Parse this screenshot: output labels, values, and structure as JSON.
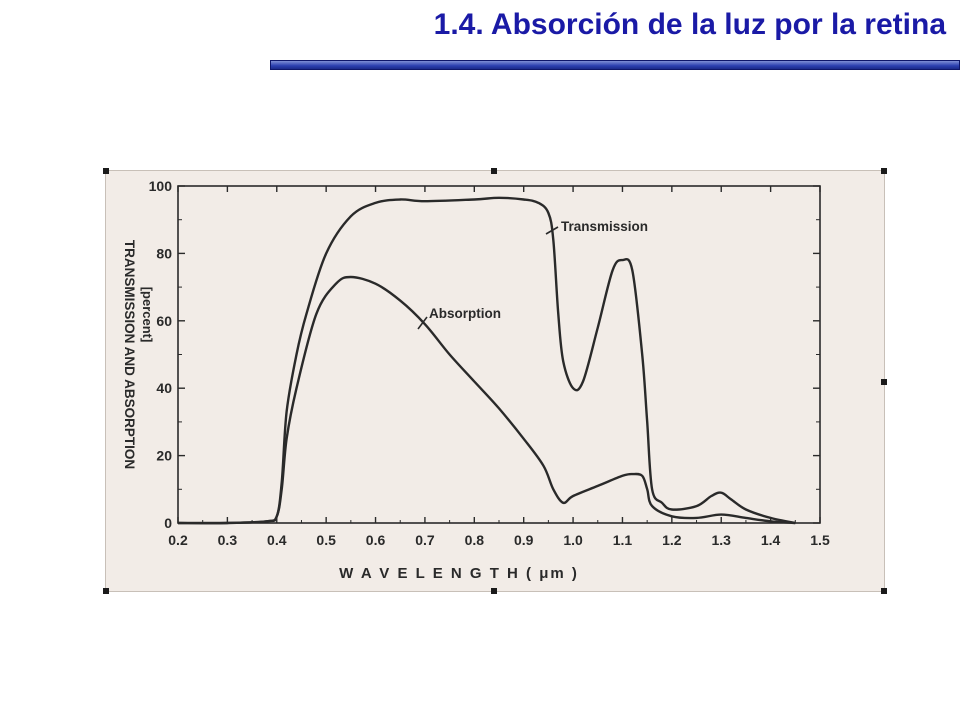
{
  "slide": {
    "title": "1.4. Absorción de la luz por la retina",
    "title_color": "#1a1aa6",
    "rule_color": "#2b3fb0"
  },
  "chart_data": {
    "type": "line",
    "title": "",
    "xlabel": "W A V E L E N G T H  ( μm )",
    "ylabel": "TRANSMISSION AND ABSORPTION",
    "ylabel_unit": "[percent]",
    "xlim": [
      0.2,
      1.5
    ],
    "ylim": [
      0,
      100
    ],
    "x_ticks": [
      "0.2",
      "0.3",
      "0.4",
      "0.5",
      "0.6",
      "0.7",
      "0.8",
      "0.9",
      "1.0",
      "1.1",
      "1.2",
      "1.3",
      "1.4",
      "1.5"
    ],
    "y_ticks": [
      "0",
      "20",
      "40",
      "60",
      "80",
      "100"
    ],
    "grid": false,
    "series": [
      {
        "name": "Transmission",
        "x": [
          0.2,
          0.3,
          0.38,
          0.4,
          0.41,
          0.42,
          0.44,
          0.46,
          0.5,
          0.55,
          0.6,
          0.65,
          0.7,
          0.8,
          0.85,
          0.9,
          0.93,
          0.95,
          0.96,
          0.97,
          0.98,
          1.0,
          1.02,
          1.05,
          1.08,
          1.1,
          1.12,
          1.14,
          1.15,
          1.16,
          1.18,
          1.2,
          1.25,
          1.28,
          1.3,
          1.32,
          1.35,
          1.4,
          1.45
        ],
        "y": [
          0,
          0,
          0.5,
          2,
          12,
          33,
          50,
          62,
          80,
          91,
          95,
          96,
          95.5,
          96,
          96.5,
          96,
          95,
          92,
          84,
          62,
          48,
          40,
          42,
          58,
          75,
          78,
          75,
          50,
          30,
          10,
          6,
          4,
          5,
          8,
          9,
          7,
          4,
          1.5,
          0
        ]
      },
      {
        "name": "Absorption",
        "x": [
          0.2,
          0.3,
          0.38,
          0.4,
          0.41,
          0.42,
          0.44,
          0.48,
          0.52,
          0.55,
          0.6,
          0.65,
          0.7,
          0.75,
          0.8,
          0.85,
          0.9,
          0.94,
          0.96,
          0.98,
          1.0,
          1.05,
          1.1,
          1.12,
          1.14,
          1.15,
          1.16,
          1.2,
          1.25,
          1.3,
          1.35,
          1.4,
          1.45
        ],
        "y": [
          0,
          0,
          0.5,
          2,
          10,
          25,
          40,
          62,
          71,
          73,
          71,
          66,
          59,
          50,
          42,
          34,
          25,
          17,
          10,
          6,
          8,
          11,
          14,
          14.5,
          14,
          10,
          5,
          2,
          1.5,
          2.5,
          1.5,
          0.5,
          0
        ]
      }
    ],
    "annotations": [
      {
        "text": "Transmission",
        "series": "Transmission"
      },
      {
        "text": "Absorption",
        "series": "Absorption"
      }
    ],
    "colors": {
      "background": "#f2ece7",
      "ink": "#2a2a2a"
    }
  }
}
